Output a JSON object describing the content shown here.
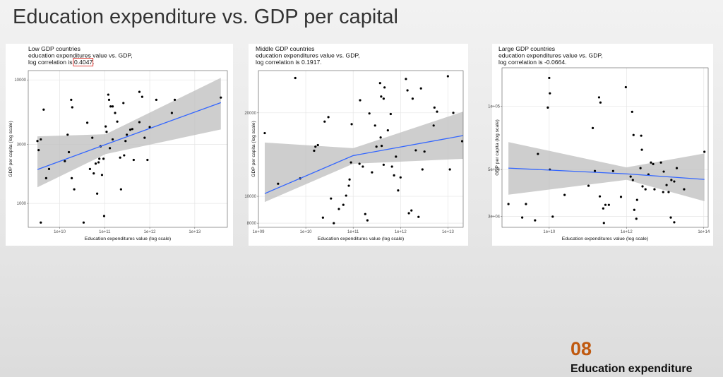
{
  "slide": {
    "title": "Education expenditure vs. GDP per capital",
    "number": "08",
    "section": "Education expenditure"
  },
  "chart_data": [
    {
      "type": "scatter",
      "title": [
        "Low GDP countries",
        "education expenditures value vs. GDP,"
      ],
      "correlation": {
        "label": "log correlation is",
        "value": "0.4047."
      },
      "highlight": true,
      "xlabel": "Education expenditures value (log scale)",
      "ylabel": "GDP per capita (log scale)",
      "xlog": true,
      "ylog": true,
      "grid": true,
      "color": "#000000",
      "xlim": [
        2000000000.0,
        53000000000000.0
      ],
      "ylim": [
        640,
        11900
      ],
      "xticks": [
        {
          "value": 10000000000.0,
          "label": "1e+10"
        },
        {
          "value": 100000000000.0,
          "label": "1e+11"
        },
        {
          "value": 1000000000000.0,
          "label": "1e+12"
        },
        {
          "value": 10000000000000.0,
          "label": "1e+13"
        }
      ],
      "yticks": [
        1000,
        3000,
        10000
      ],
      "x": [
        3200000000.0,
        3400000000.0,
        3800000000.0,
        4400000000.0,
        3800000000.0,
        5800000000.0,
        5000000000.0,
        13000000000.0,
        15000000000.0,
        16000000000.0,
        18000000000.0,
        19000000000.0,
        18500000000.0,
        21000000000.0,
        34000000000.0,
        41000000000.0,
        47000000000.0,
        53000000000.0,
        57000000000.0,
        63000000000.0,
        68000000000.0,
        73000000000.0,
        76000000000.0,
        81000000000.0,
        87000000000.0,
        94000000000.0,
        105000000000.0,
        110000000000.0,
        97000000000.0,
        120000000000.0,
        125000000000.0,
        130000000000.0,
        135000000000.0,
        150000000000.0,
        150000000000.0,
        170000000000.0,
        190000000000.0,
        220000000000.0,
        230000000000.0,
        260000000000.0,
        270000000000.0,
        290000000000.0,
        310000000000.0,
        370000000000.0,
        410000000000.0,
        440000000000.0,
        590000000000.0,
        680000000000.0,
        590000000000.0,
        770000000000.0,
        890000000000.0,
        1000000000000.0,
        1400000000000.0,
        3100000000000.0,
        3600000000000.0,
        38000000000000.0
      ],
      "y": [
        3200,
        2700,
        3300,
        5750,
        700,
        1900,
        1600,
        2200,
        3600,
        2600,
        6900,
        6000,
        1600,
        1300,
        700,
        4500,
        1900,
        3400,
        1750,
        2100,
        1200,
        2150,
        2300,
        2900,
        1700,
        2300,
        4200,
        3800,
        790,
        7600,
        6900,
        2800,
        6100,
        6100,
        3300,
        5400,
        4600,
        2350,
        1300,
        6500,
        2450,
        3200,
        3600,
        3950,
        4000,
        2250,
        8000,
        7300,
        4550,
        3400,
        2250,
        4150,
        6900,
        5400,
        6900,
        7200
      ],
      "fit": {
        "color": "#3366ff",
        "band_color": "#bebebe",
        "x": [
          3200000000.0,
          105000000000.0,
          38000000000000.0
        ],
        "y": [
          1880,
          3000,
          6550
        ],
        "lower": [
          1350,
          2510,
          3970
        ],
        "upper": [
          3490,
          3630,
          10400
        ]
      }
    },
    {
      "type": "scatter",
      "title": [
        "Middle GDP countries",
        "education expenditures value vs. GDP,"
      ],
      "correlation": {
        "label": "log correlation is",
        "value": "0.1917."
      },
      "highlight": false,
      "xlabel": "Education expenditures value (log scale)",
      "ylabel": "GDP per capita (log scale)",
      "xlog": true,
      "ylog": true,
      "grid": true,
      "color": "#000000",
      "xlim": [
        1000000000.0,
        21000000000000.0
      ],
      "ylim": [
        7730,
        28400
      ],
      "xticks": [
        {
          "value": 1000000000.0,
          "label": "1e+09"
        },
        {
          "value": 10000000000.0,
          "label": "1e+10"
        },
        {
          "value": 100000000000.0,
          "label": "1e+11"
        },
        {
          "value": 1000000000000.0,
          "label": "1e+12"
        },
        {
          "value": 10000000000000.0,
          "label": "1e+13"
        }
      ],
      "yticks": [
        8000,
        10000,
        20000
      ],
      "x": [
        1360000000.0,
        2600000000.0,
        6000000000.0,
        7600000000.0,
        15000000000.0,
        16000000000.0,
        18000000000.0,
        23000000000.0,
        25000000000.0,
        30000000000.0,
        34000000000.0,
        39000000000.0,
        50000000000.0,
        62000000000.0,
        71000000000.0,
        81000000000.0,
        84000000000.0,
        93000000000.0,
        90000000000.0,
        136000000000.0,
        140000000000.0,
        160000000000.0,
        180000000000.0,
        200000000000.0,
        220000000000.0,
        250000000000.0,
        290000000000.0,
        310000000000.0,
        370000000000.0,
        380000000000.0,
        390000000000.0,
        400000000000.0,
        440000000000.0,
        440000000000.0,
        460000000000.0,
        540000000000.0,
        620000000000.0,
        660000000000.0,
        730000000000.0,
        800000000000.0,
        890000000000.0,
        1000000000000.0,
        1300000000000.0,
        1400000000000.0,
        1500000000000.0,
        1700000000000.0,
        1800000000000.0,
        2100000000000.0,
        2400000000000.0,
        2700000000000.0,
        2900000000000.0,
        3200000000000.0,
        5000000000000.0,
        5200000000000.0,
        5900000000000.0,
        10000000000000.0,
        11000000000000.0,
        13000000000000.0,
        20000000000000.0
      ],
      "y": [
        16900,
        11100,
        26700,
        11600,
        14600,
        15100,
        15300,
        8380,
        18600,
        19300,
        9820,
        8000,
        9000,
        9320,
        10060,
        10920,
        11500,
        18200,
        13250,
        13100,
        22200,
        12800,
        8630,
        8190,
        19900,
        12200,
        18000,
        15100,
        25600,
        16300,
        22900,
        15200,
        22500,
        13000,
        24700,
        17300,
        19800,
        12800,
        11900,
        13900,
        10500,
        11700,
        26500,
        24100,
        8690,
        8890,
        22500,
        14650,
        8430,
        24500,
        12500,
        14500,
        18000,
        20900,
        20200,
        27100,
        12500,
        20000,
        15800
      ],
      "fit": {
        "color": "#3366ff",
        "band_color": "#bebebe",
        "x": [
          1360000000.0,
          100000000000.0,
          21000000000000.0
        ],
        "y": [
          10230,
          14020,
          16560
        ],
        "lower": [
          9540,
          13100,
          13650
        ],
        "upper": [
          15630,
          14910,
          20200
        ]
      }
    },
    {
      "type": "scatter",
      "title": [
        "Large GDP countries",
        "education expenditures value vs. GDP,"
      ],
      "correlation": {
        "label": "log correlation is",
        "value": "-0.0664."
      },
      "highlight": false,
      "xlabel": "Education expenditures value (log scale)",
      "ylabel": "GDP per capita (log scale)",
      "xlog": true,
      "ylog": true,
      "grid": true,
      "color": "#000000",
      "xlim": [
        600000000.0,
        130000000000000.0
      ],
      "ylim": [
        26600,
        152000
      ],
      "xticks": [
        {
          "value": 10000000000.0,
          "label": "1e+10"
        },
        {
          "value": 1000000000000.0,
          "label": "1e+12"
        },
        {
          "value": 100000000000000.0,
          "label": "1e+14"
        }
      ],
      "yticks": [
        {
          "value": 30000,
          "label": "3e+04"
        },
        {
          "value": 50000,
          "label": "5e+04"
        },
        {
          "value": 100000,
          "label": "1e+05"
        }
      ],
      "x": [
        880000000.0,
        2000000000.0,
        2500000000.0,
        4300000000.0,
        5100000000.0,
        10000000000.0,
        10400000000.0,
        9200000000.0,
        10400000000.0,
        12300000000.0,
        25000000000.0,
        104000000000.0,
        134000000000.0,
        152000000000.0,
        195000000000.0,
        212000000000.0,
        204000000000.0,
        250000000000.0,
        260000000000.0,
        285000000000.0,
        350000000000.0,
        450000000000.0,
        720000000000.0,
        960000000000.0,
        1400000000000.0,
        1280000000000.0,
        1520000000000.0,
        1460000000000.0,
        1590000000000.0,
        1800000000000.0,
        1880000000000.0,
        2300000000000.0,
        2400000000000.0,
        2500000000000.0,
        2600000000000.0,
        3100000000000.0,
        3700000000000.0,
        4300000000000.0,
        4900000000000.0,
        5300000000000.0,
        7800000000000.0,
        9200000000000.0,
        8900000000000.0,
        10900000000000.0,
        12300000000000.0,
        14000000000000.0,
        14500000000000.0,
        17200000000000.0,
        20000000000000.0,
        31000000000000.0,
        104000000000000.0,
        17200000000000.0
      ],
      "y": [
        34300,
        29600,
        34300,
        28700,
        59300,
        136000,
        115000,
        98400,
        50000,
        29900,
        37900,
        41900,
        78700,
        49200,
        110000,
        104000,
        37300,
        32700,
        27900,
        34000,
        34000,
        49200,
        37100,
        123000,
        94000,
        46300,
        72900,
        44600,
        32200,
        29200,
        35900,
        50800,
        72400,
        62100,
        41600,
        40300,
        47400,
        54000,
        53100,
        40300,
        54000,
        48900,
        39100,
        42200,
        39100,
        29600,
        44600,
        43900,
        50800,
        40300,
        60700,
        28100
      ],
      "fit": {
        "color": "#3366ff",
        "band_color": "#bebebe",
        "x": [
          880000000.0,
          1000000000000.0,
          104000000000000.0
        ],
        "y": [
          50800,
          47700,
          44900
        ],
        "lower": [
          38000,
          44700,
          35400
        ],
        "upper": [
          67500,
          51200,
          59600
        ]
      }
    }
  ]
}
